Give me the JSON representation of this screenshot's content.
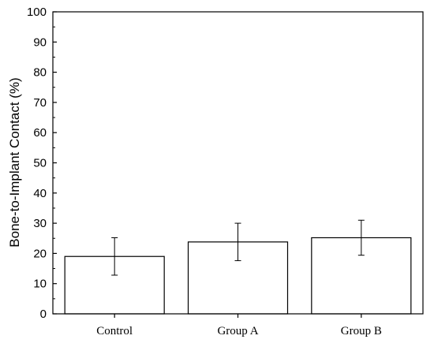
{
  "chart_data": {
    "type": "bar",
    "title": "",
    "xlabel": "",
    "ylabel": "Bone-to-Implant Contact (%)",
    "ylim": [
      0,
      100
    ],
    "yticks": [
      0,
      10,
      20,
      30,
      40,
      50,
      60,
      70,
      80,
      90,
      100
    ],
    "categories": [
      "Control",
      "Group A",
      "Group B"
    ],
    "values": [
      19,
      23.8,
      25.2
    ],
    "error": [
      6.2,
      6.2,
      5.8
    ],
    "grid": false,
    "legend": "none",
    "bar_fill": "#ffffff",
    "bar_stroke": "#000000"
  }
}
